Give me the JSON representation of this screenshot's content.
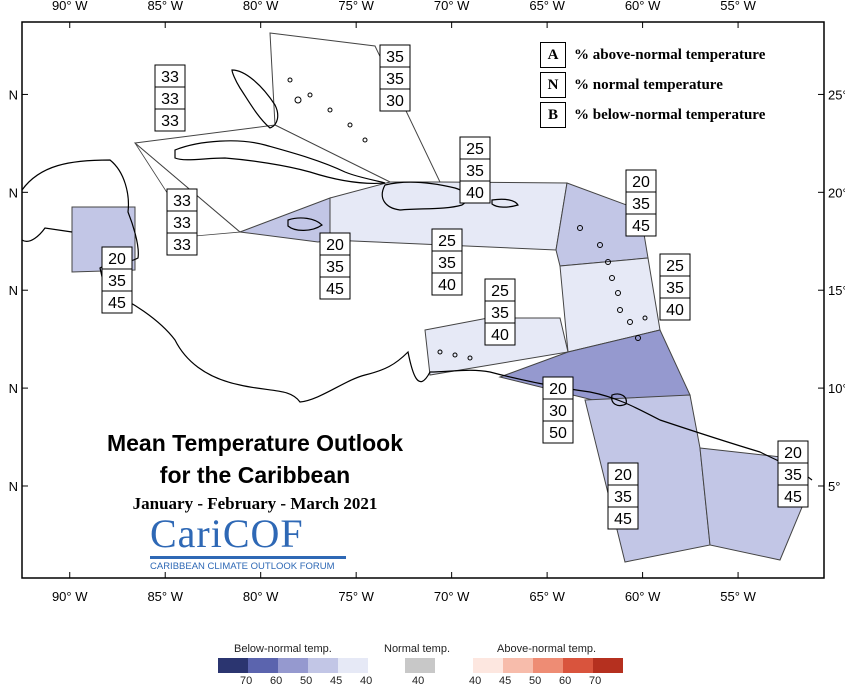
{
  "title": {
    "line1": "Mean Temperature Outlook",
    "line2": "for the Caribbean",
    "period": "January - February - March 2021"
  },
  "logo": {
    "text": "CariCOF",
    "subtitle": "CARIBBEAN CLIMATE OUTLOOK FORUM",
    "color": "#2e68b5"
  },
  "axes": {
    "longitude_labels": [
      "90° W",
      "85° W",
      "80° W",
      "75° W",
      "70° W",
      "65° W",
      "60° W",
      "55° W"
    ],
    "latitude_labels": [
      "25° N",
      "20° N",
      "15° N",
      "10° N",
      "5° N"
    ],
    "lon_range": [
      -92.5,
      -50.5
    ],
    "lat_range": [
      0.3,
      28.7
    ]
  },
  "key": [
    {
      "letter": "A",
      "text": "% above-normal temperature"
    },
    {
      "letter": "N",
      "text": "% normal temperature"
    },
    {
      "letter": "B",
      "text": "% below-normal temperature"
    }
  ],
  "legend": {
    "below_title": "Below-normal temp.",
    "normal_title": "Normal temp.",
    "above_title": "Above-normal temp.",
    "below_colors": [
      "#2b3570",
      "#5b64ae",
      "#9599cf",
      "#c2c6e6",
      "#e6e9f6"
    ],
    "below_ticks": [
      "70",
      "60",
      "50",
      "45",
      "40"
    ],
    "normal_color": "#c8c8c8",
    "normal_tick": "40",
    "above_colors": [
      "#fde7e0",
      "#f7bcab",
      "#ee8c74",
      "#d9543d",
      "#b5301f"
    ],
    "above_ticks": [
      "40",
      "45",
      "50",
      "60",
      "70"
    ]
  },
  "regions": [
    {
      "name": "bahamas",
      "fill": "#ffffff",
      "probs": [
        "35",
        "35",
        "30"
      ]
    },
    {
      "name": "cuba",
      "fill": "#ffffff",
      "probs": [
        "33",
        "33",
        "33"
      ]
    },
    {
      "name": "cayman",
      "fill": "#ffffff",
      "probs": [
        "33",
        "33",
        "33"
      ]
    },
    {
      "name": "belize",
      "fill": "#c2c6e6",
      "probs": [
        "20",
        "35",
        "45"
      ]
    },
    {
      "name": "jamaica",
      "fill": "#c2c6e6",
      "probs": [
        "20",
        "35",
        "45"
      ]
    },
    {
      "name": "hispaniola",
      "fill": "#e6e9f6",
      "probs": [
        "25",
        "35",
        "40"
      ]
    },
    {
      "name": "southern-hispaniola-sea",
      "fill": "#e6e9f6",
      "probs": [
        "25",
        "35",
        "40"
      ]
    },
    {
      "name": "leeward-islands",
      "fill": "#c2c6e6",
      "probs": [
        "20",
        "35",
        "45"
      ]
    },
    {
      "name": "windward-islands",
      "fill": "#e6e9f6",
      "probs": [
        "25",
        "35",
        "40"
      ]
    },
    {
      "name": "abc-islands",
      "fill": "#e6e9f6",
      "probs": [
        "25",
        "35",
        "40"
      ]
    },
    {
      "name": "trinidad",
      "fill": "#9599cf",
      "probs": [
        "20",
        "30",
        "50"
      ]
    },
    {
      "name": "guyana",
      "fill": "#c2c6e6",
      "probs": [
        "20",
        "35",
        "45"
      ]
    },
    {
      "name": "french-guiana",
      "fill": "#c2c6e6",
      "probs": [
        "20",
        "35",
        "45"
      ]
    }
  ]
}
